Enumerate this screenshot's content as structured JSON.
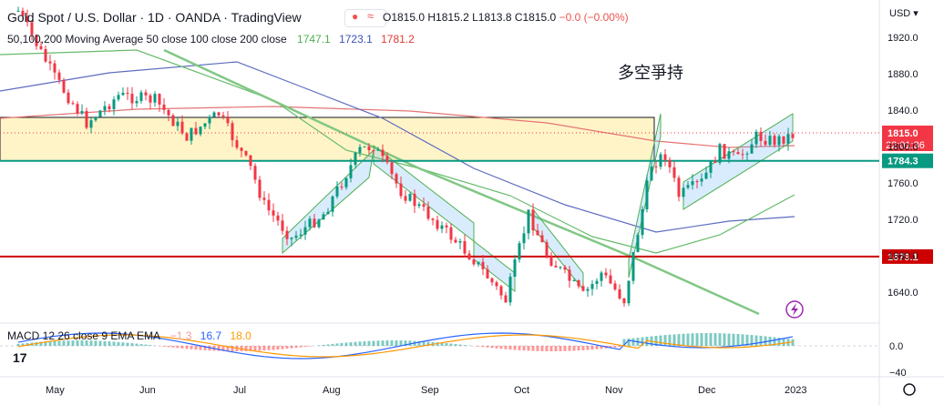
{
  "header": {
    "symbol_line": "Gold Spot / U.S. Dollar · 1D · OANDA · TradingView",
    "ohlc_o": "O1815.0",
    "ohlc_h": "H1815.2",
    "ohlc_l": "L1813.8",
    "ohlc_c": "C1815.0",
    "ohlc_chg": "−0.0 (−0.00%)",
    "ma_label": "50,100,200 Moving Average 50 close 100 close 200 close",
    "ma_values": [
      "1747.1",
      "1723.1",
      "1781.2"
    ],
    "macd_label": "MACD 12 26 close 9 EMA EMA",
    "macd_values": [
      "−1.3",
      "16.7",
      "18.0"
    ],
    "currency": "USD",
    "annotation": "多空爭持"
  },
  "chart_data": {
    "type": "candlestick",
    "symbol": "XAU/USD",
    "timeframe": "1D",
    "x_labels": [
      "May",
      "Jun",
      "Jul",
      "Aug",
      "Sep",
      "Oct",
      "Nov",
      "Dec",
      "2023"
    ],
    "y_ticks": [
      "1920.0",
      "1880.0",
      "1840.0",
      "1800.0",
      "1760.0",
      "1720.0",
      "1680.0",
      "1640.0"
    ],
    "ylim": [
      1613,
      1943
    ],
    "last_price": "1815.0",
    "countdown": "22:01:36",
    "levels": [
      {
        "label": "1784.3",
        "value": 1784.3,
        "color": "#089981"
      },
      {
        "label": "1679.1",
        "value": 1679.1,
        "color": "#cc0000"
      }
    ],
    "moving_averages": [
      {
        "name": "MA50",
        "value": 1747.1,
        "color": "#4caf50"
      },
      {
        "name": "MA100",
        "value": 1723.1,
        "color": "#3f51b5"
      },
      {
        "name": "MA200",
        "value": 1781.2,
        "color": "#e53935"
      }
    ],
    "zone": {
      "from": 1784.3,
      "to": 1832,
      "color": "#fff4c7"
    },
    "macd": {
      "macd": -1.3,
      "signal": 16.7,
      "hist": 18.0,
      "y_ticks": [
        "0.0",
        "−40"
      ]
    },
    "colors": {
      "up": "#089981",
      "down": "#f23645"
    }
  }
}
